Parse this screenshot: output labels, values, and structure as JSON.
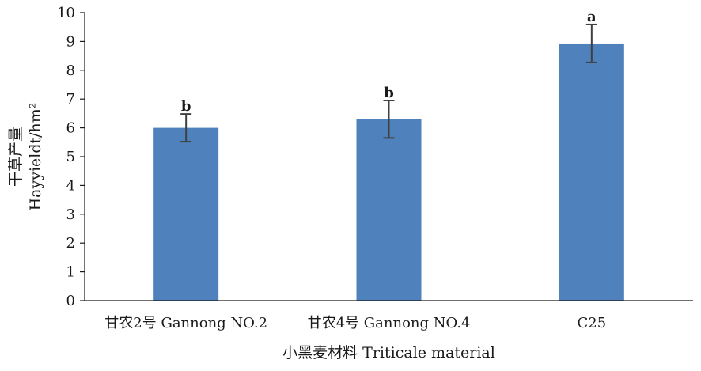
{
  "chart_data": {
    "type": "bar",
    "categories": [
      "甘农2号 Gannong NO.2",
      "甘农4号 Gannong NO.4",
      "C25"
    ],
    "values": [
      6.0,
      6.3,
      8.93
    ],
    "error": [
      0.48,
      0.65,
      0.66
    ],
    "significance": [
      "b",
      "b",
      "a"
    ],
    "xlabel": "小黑麦材料 Triticale material",
    "ylabel_line1": "干草产量",
    "ylabel_line2": "Hayyieldt/hm²",
    "ylim": [
      0,
      10
    ],
    "yticks": [
      0,
      1,
      2,
      3,
      4,
      5,
      6,
      7,
      8,
      9,
      10
    ],
    "grid": false,
    "bar_color": "#4f81bd",
    "error_color": "#404040"
  }
}
